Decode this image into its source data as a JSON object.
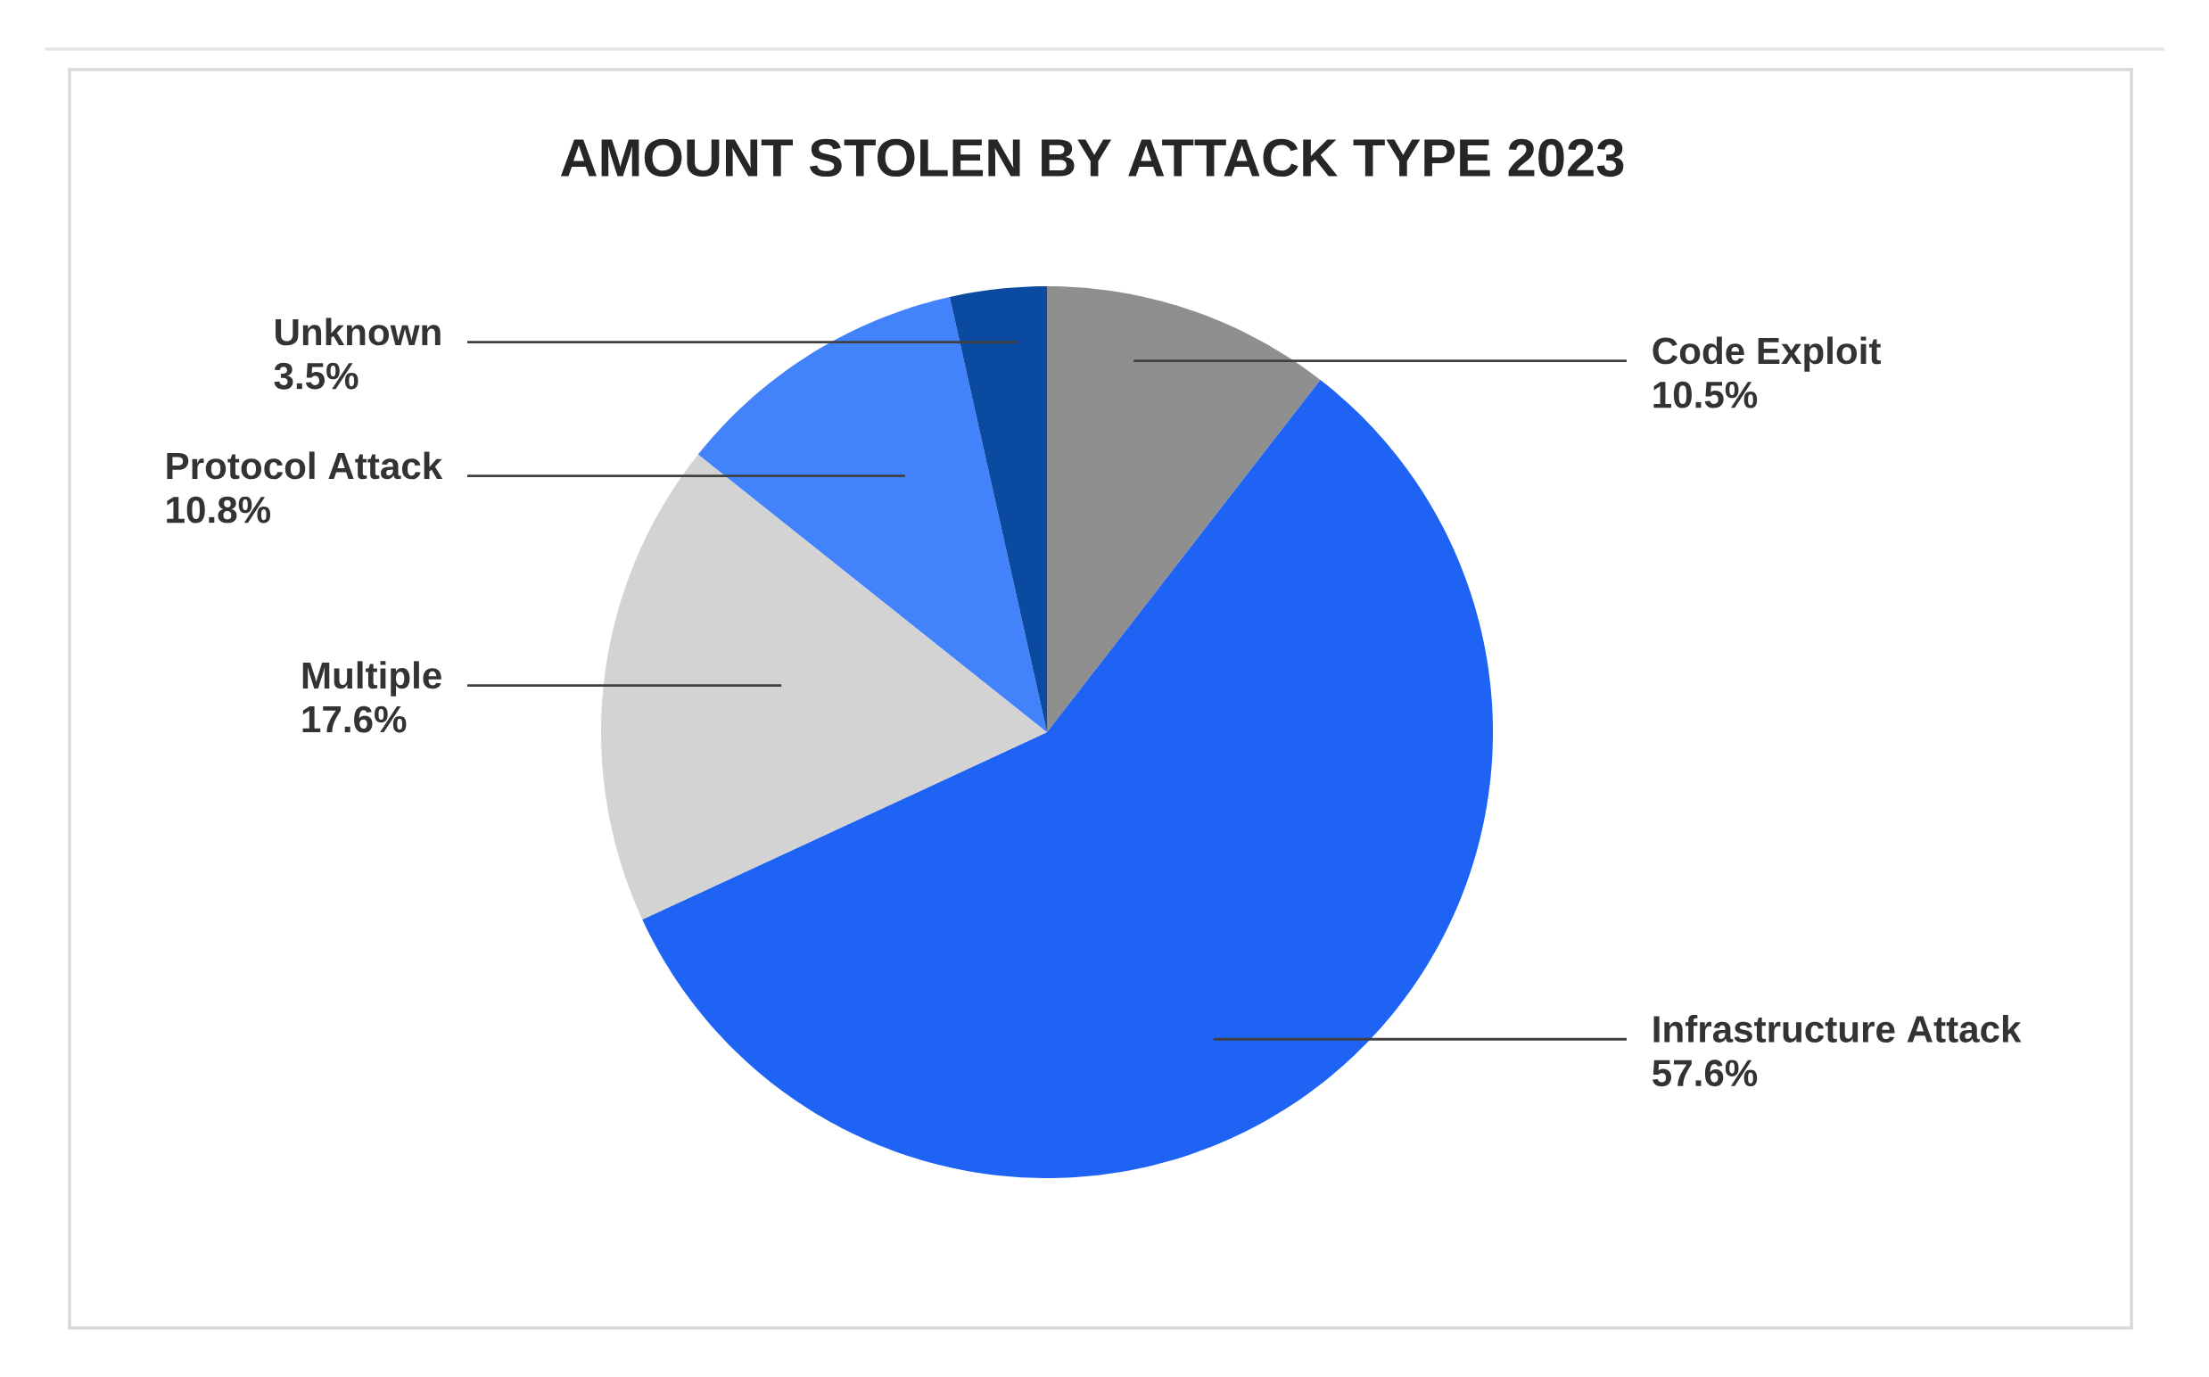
{
  "chart_data": {
    "type": "pie",
    "title": "AMOUNT STOLEN BY ATTACK TYPE 2023",
    "categories": [
      "Code Exploit",
      "Infrastructure Attack",
      "Multiple",
      "Protocol Attack",
      "Unknown"
    ],
    "values": [
      10.5,
      57.6,
      17.6,
      10.8,
      3.5
    ],
    "value_labels": [
      "10.5%",
      "57.6%",
      "17.6%",
      "10.8%",
      "3.5%"
    ],
    "colors": [
      "#8f8f8f",
      "#1f63f5",
      "#d3d3d3",
      "#4283fb",
      "#0a4aa0"
    ]
  }
}
